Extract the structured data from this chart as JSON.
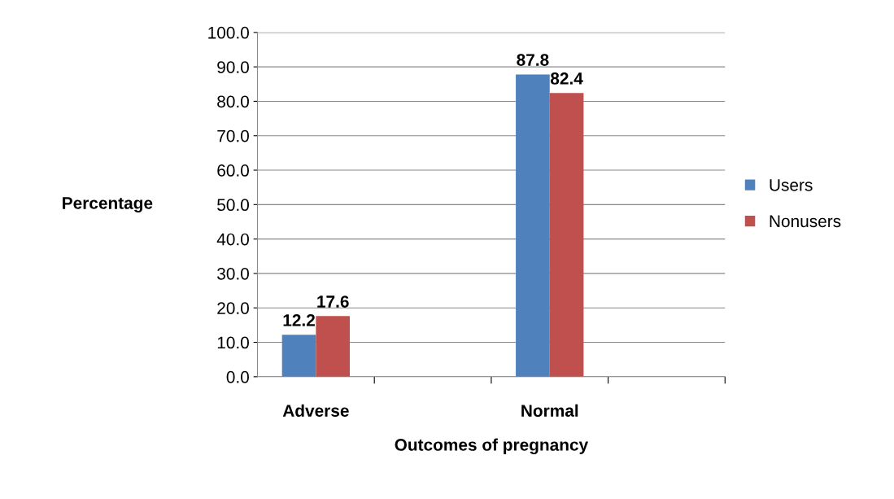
{
  "chart_data": {
    "type": "bar",
    "xlabel": "Outcomes of pregnancy",
    "ylabel": "Percentage",
    "categories": [
      "Adverse",
      null,
      "Normal",
      null
    ],
    "series": [
      {
        "name": "Users",
        "color": "#4f81bd",
        "values": [
          12.2,
          null,
          87.8,
          null
        ]
      },
      {
        "name": "Nonusers",
        "color": "#c0504d",
        "values": [
          17.6,
          null,
          82.4,
          null
        ]
      }
    ],
    "ylim": [
      0,
      100
    ],
    "yticks": [
      {
        "value": 0,
        "label": "0.0"
      },
      {
        "value": 10,
        "label": "10.0"
      },
      {
        "value": 20,
        "label": "20.0"
      },
      {
        "value": 30,
        "label": "30.0"
      },
      {
        "value": 40,
        "label": "40.0"
      },
      {
        "value": 50,
        "label": "50.0"
      },
      {
        "value": 60,
        "label": "60.0"
      },
      {
        "value": 70,
        "label": "70.0"
      },
      {
        "value": 80,
        "label": "80.0"
      },
      {
        "value": 90,
        "label": "90.0"
      },
      {
        "value": 100,
        "label": "100.0"
      }
    ],
    "grid": "y",
    "legend": "right",
    "data_labels": true
  }
}
